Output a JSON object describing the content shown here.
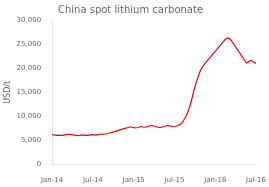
{
  "chart_data": {
    "type": "line",
    "title": "China spot lithium carbonate",
    "y_label": "USD/t",
    "color": "#e8000e",
    "grid": false,
    "xlim": [
      0,
      30
    ],
    "xticks": [
      {
        "value": 0,
        "label": "Jan-14"
      },
      {
        "value": 6,
        "label": "Jul-14"
      },
      {
        "value": 12,
        "label": "Jan-15"
      },
      {
        "value": 18,
        "label": "Jul-15"
      },
      {
        "value": 24,
        "label": "Jan-16"
      },
      {
        "value": 30,
        "label": "Jul-16"
      }
    ],
    "ylim": [
      0,
      30000
    ],
    "yticks": [
      0,
      {
        "value": 5000,
        "label": "5,000"
      },
      {
        "value": 10000,
        "label": "10,000"
      },
      {
        "value": 15000,
        "label": "15,000"
      },
      {
        "value": 20000,
        "label": "20,000"
      },
      {
        "value": 25000,
        "label": "25,000"
      },
      {
        "value": 30000,
        "label": "30,000"
      }
    ],
    "x": [
      0,
      0.2381,
      0.4762,
      0.7143,
      0.9524,
      1.1905,
      1.4286,
      1.6667,
      1.9048,
      2.1429,
      2.381,
      2.619,
      2.8571,
      3.0952,
      3.3333,
      3.5714,
      3.8095,
      4.0476,
      4.2857,
      4.5238,
      4.7619,
      5,
      5.2381,
      5.4762,
      5.7143,
      5.9524,
      6.1905,
      6.4286,
      6.6667,
      6.9048,
      7.1429,
      7.381,
      7.619,
      7.8571,
      8.0952,
      8.3333,
      8.5714,
      8.8095,
      9.0476,
      9.2857,
      9.5238,
      9.7619,
      10,
      10.2381,
      10.4762,
      10.7143,
      10.9524,
      11.1905,
      11.4286,
      11.6667,
      11.9048,
      12.1429,
      12.381,
      12.619,
      12.8571,
      13.0952,
      13.3333,
      13.5714,
      13.8095,
      14.0476,
      14.2857,
      14.5238,
      14.7619,
      15,
      15.2381,
      15.4762,
      15.7143,
      15.9524,
      16.1905,
      16.4286,
      16.6667,
      16.9048,
      17.1429,
      17.381,
      17.619,
      17.8571,
      18.0952,
      18.3333,
      18.5714,
      18.8095,
      19.0476,
      19.2857,
      19.5238,
      19.7619,
      20,
      20.2381,
      20.4762,
      20.7143,
      20.9524,
      21.1905,
      21.4286,
      21.6667,
      21.9048,
      22.1429,
      22.381,
      22.619,
      22.8571,
      23.0952,
      23.3333,
      23.5714,
      23.8095,
      24.0476,
      24.2857,
      24.5238,
      24.7619,
      25,
      25.2381,
      25.4762,
      25.7143,
      25.9524,
      26.1905,
      26.4286,
      26.6667,
      26.9048,
      27.1429,
      27.381,
      27.619,
      27.8571,
      28.0952,
      28.3333,
      28.5714,
      28.8095,
      29.0476,
      29.2857,
      29.5238,
      29.7619,
      30
    ],
    "values": [
      6200,
      6150,
      6100,
      6050,
      6100,
      6080,
      6050,
      6100,
      6150,
      6200,
      6300,
      6250,
      6200,
      6150,
      6100,
      6050,
      6000,
      6050,
      6100,
      6150,
      6100,
      6050,
      6050,
      6100,
      6150,
      6200,
      6150,
      6100,
      6150,
      6200,
      6300,
      6350,
      6300,
      6350,
      6400,
      6500,
      6600,
      6700,
      6800,
      6900,
      7000,
      7100,
      7200,
      7300,
      7400,
      7500,
      7600,
      7700,
      7800,
      7800,
      7700,
      7600,
      7650,
      7700,
      7800,
      7900,
      7800,
      7750,
      7800,
      7900,
      8000,
      8100,
      8100,
      8000,
      7900,
      7800,
      7700,
      7700,
      7800,
      7900,
      8000,
      8100,
      8100,
      8000,
      7900,
      7850,
      7900,
      8000,
      8100,
      8300,
      8600,
      9000,
      9600,
      10200,
      11000,
      12000,
      13200,
      14500,
      15800,
      17000,
      18000,
      19000,
      19800,
      20300,
      20800,
      21200,
      21600,
      22000,
      22400,
      22800,
      23200,
      23600,
      24000,
      24400,
      24800,
      25200,
      25600,
      26000,
      26200,
      26300,
      26000,
      25600,
      25100,
      24600,
      24100,
      23600,
      23100,
      22600,
      22100,
      21600,
      21100,
      21200,
      21500,
      21600,
      21400,
      21200,
      21000
    ]
  }
}
